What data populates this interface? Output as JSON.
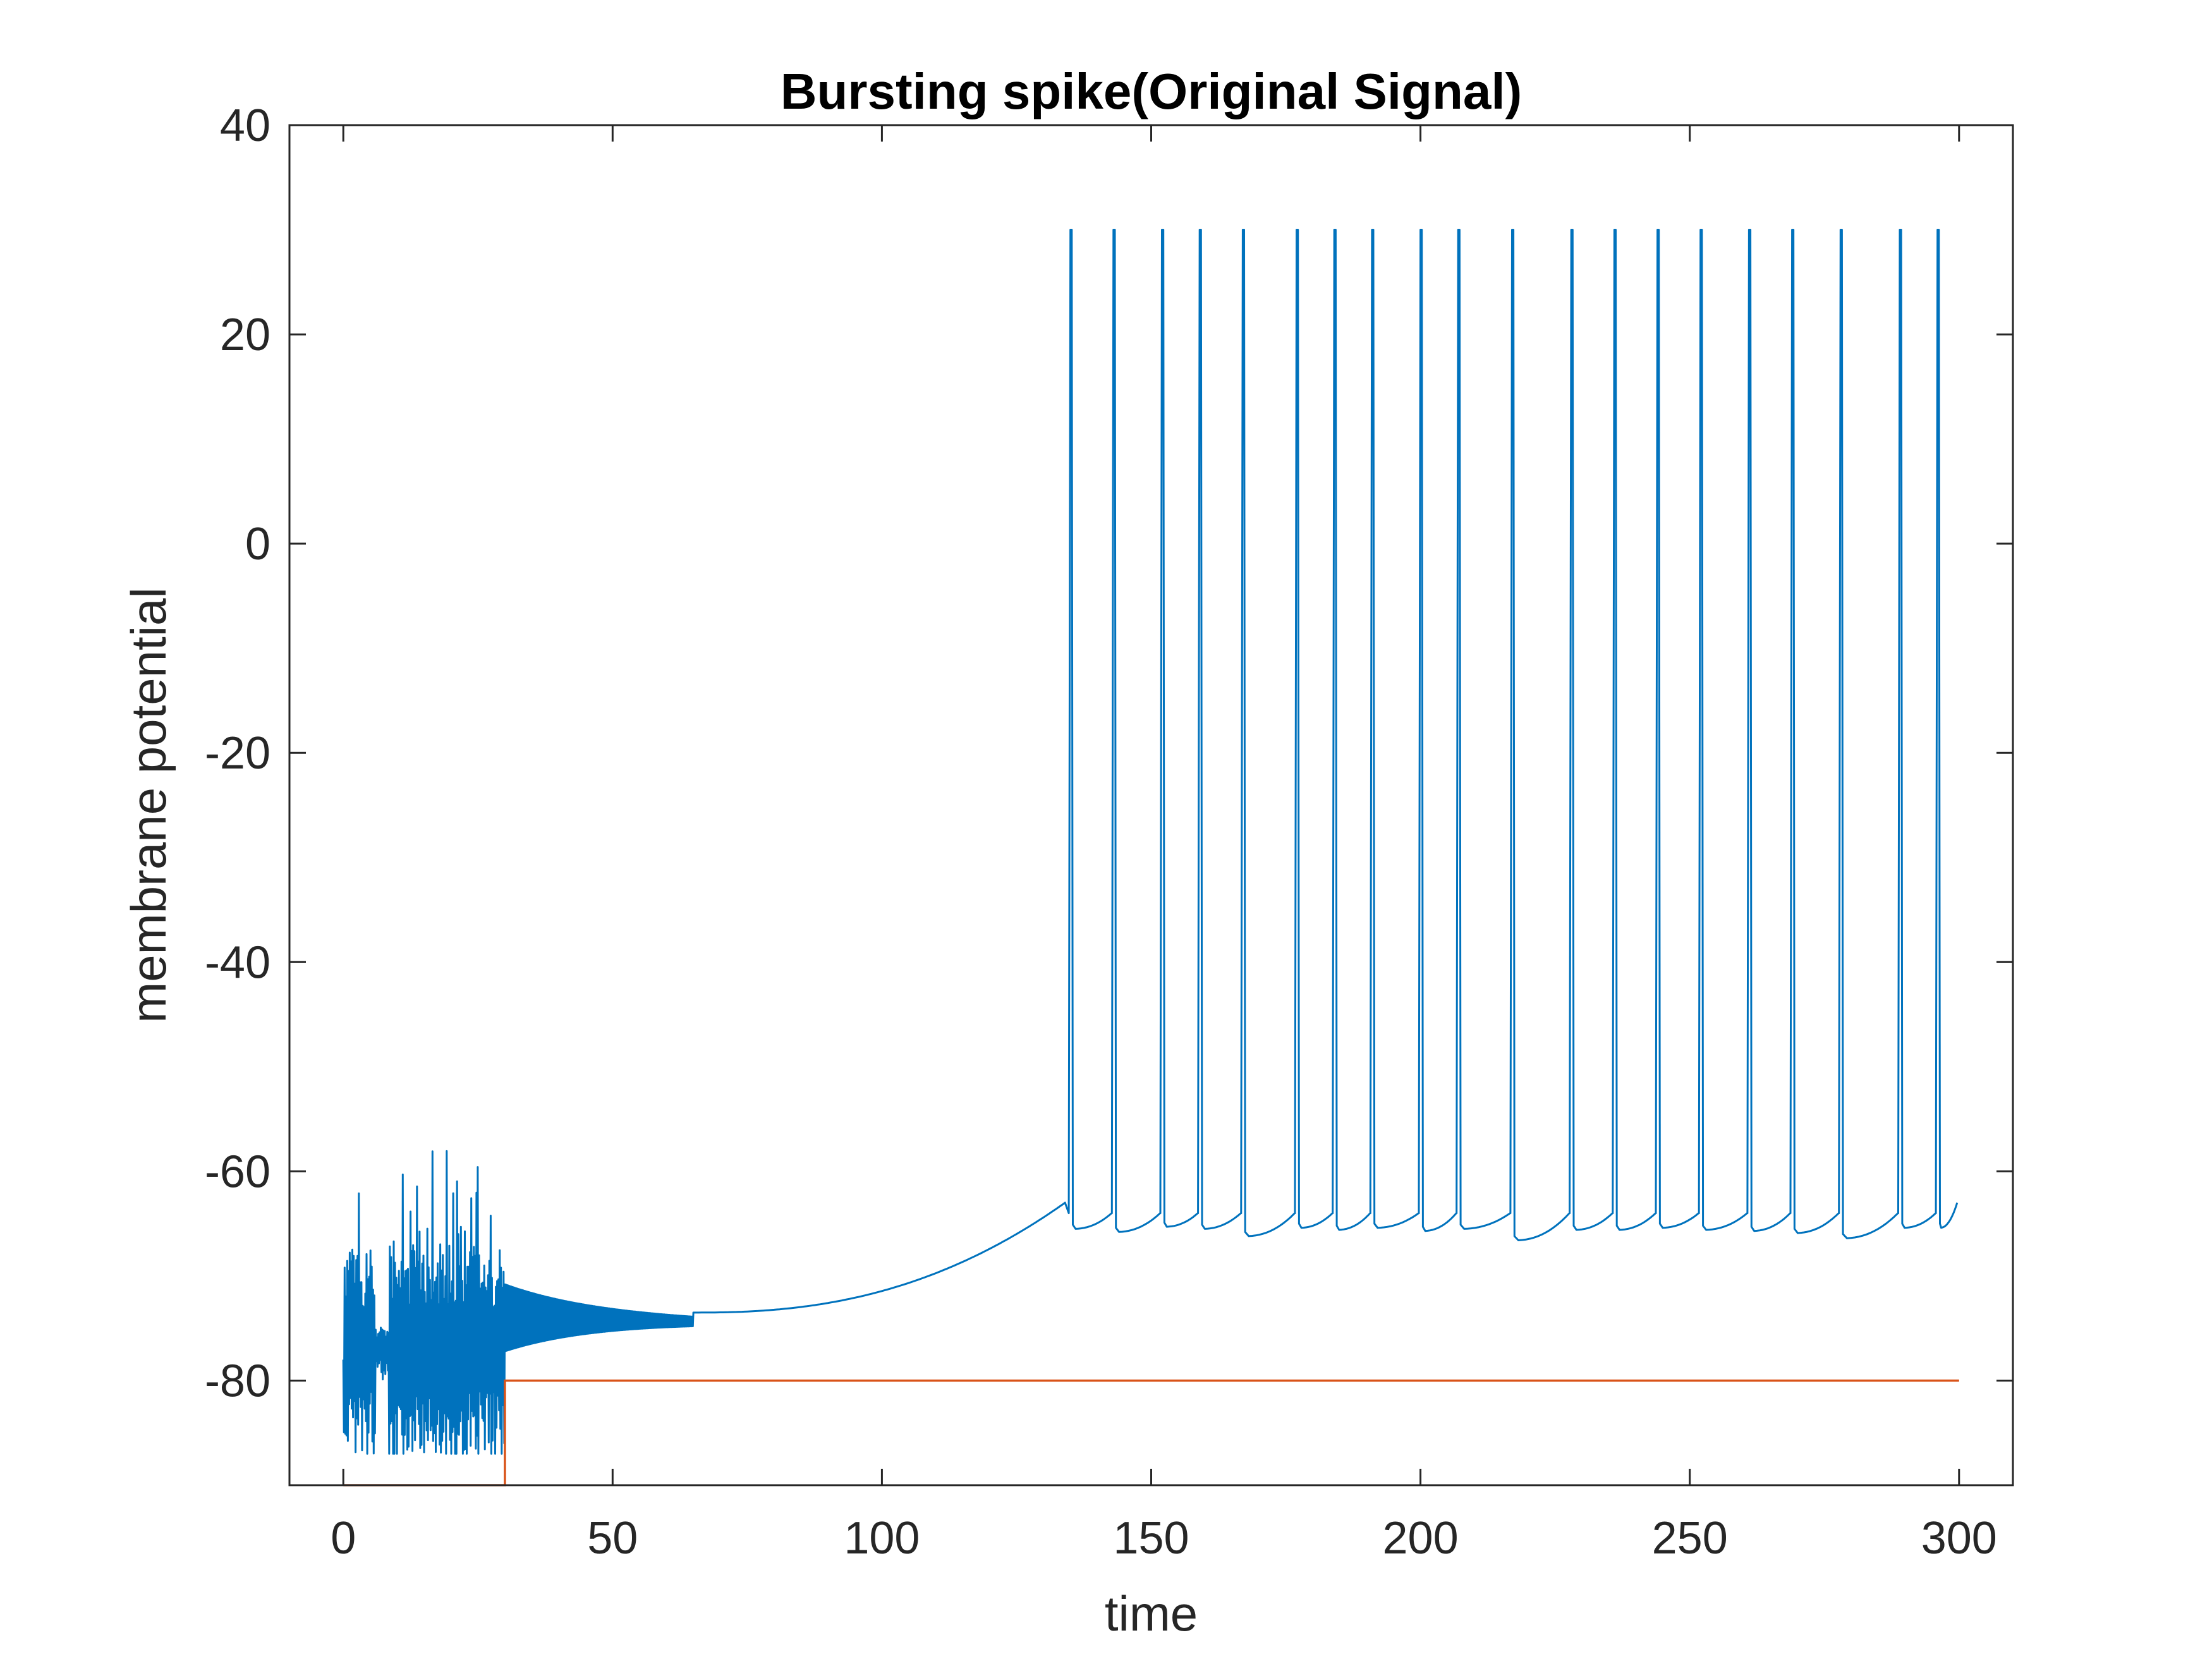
{
  "chart_data": {
    "type": "line",
    "title": "Bursting spike(Original Signal)",
    "xlabel": "time",
    "ylabel": "membrane potential",
    "xlim": [
      -10,
      310
    ],
    "ylim": [
      -90,
      40
    ],
    "xticks": [
      0,
      50,
      100,
      150,
      200,
      250,
      300
    ],
    "yticks": [
      40,
      20,
      0,
      -20,
      -40,
      -60,
      -80
    ],
    "xtick_labels": [
      "0",
      "50",
      "100",
      "150",
      "200",
      "250",
      "300"
    ],
    "ytick_labels": [
      "40",
      "20",
      "0",
      "-20",
      "-40",
      "-60",
      "-80"
    ],
    "grid": false,
    "box": true,
    "series": [
      {
        "color": "#0072BD",
        "description_shape": "noisy oscillation 0-30 between about -87 and -57, decaying oscillation 30-65 around -74, slow rise to -63 at t~134, then periodic spikes to 30 with reset near -66",
        "spike_times": [
          135,
          143,
          152,
          159,
          167,
          177,
          184,
          191,
          200,
          207,
          217,
          228,
          236,
          244,
          252,
          261,
          269,
          278,
          289,
          296
        ],
        "spike_peak": 30,
        "reset_values": [
          -65.5,
          -65.8,
          -65.3,
          -65.5,
          -66.2,
          -65.4,
          -65.6,
          -65.4,
          -65.7,
          -65.5,
          -66.6,
          -65.6,
          -65.6,
          -65.4,
          -65.6,
          -65.7,
          -65.9,
          -66.4,
          -65.4,
          -65.4
        ],
        "end_point": [
          300,
          -63
        ]
      },
      {
        "color": "#D95319",
        "x": [
          0,
          30,
          30,
          300
        ],
        "y": [
          -90,
          -90,
          -80,
          -80
        ]
      }
    ]
  }
}
